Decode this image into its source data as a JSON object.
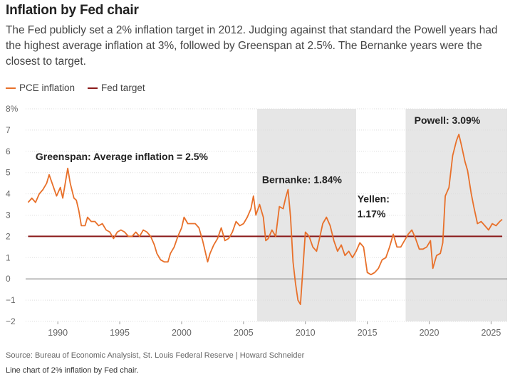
{
  "title": "Inflation by Fed chair",
  "subtitle": "The Fed publicly set a 2% inflation target in 2012. Judging against that standard the Powell years had the highest average inflation at 3%, followed by Greenspan at 2.5%. The Bernanke years were the closest to target.",
  "source": "Source: Bureau of Economic Analysist, St. Louis Federal Reserve | Howard Schneider",
  "caption": "Line chart of 2% inflation by Fed chair.",
  "colors": {
    "pce": "#e8702a",
    "target": "#8b1a1a",
    "shade": "#e6e6e6",
    "grid": "#dddddd",
    "zero": "#888888"
  },
  "chart_data": {
    "type": "line",
    "xlim": [
      1987.4,
      2026.3
    ],
    "ylim": [
      -2,
      8
    ],
    "x_ticks": [
      1990,
      1995,
      2000,
      2005,
      2010,
      2015,
      2020,
      2025
    ],
    "x_tick_labels": [
      "1990",
      "1995",
      "2000",
      "2005",
      "2010",
      "2015",
      "2020",
      "2025"
    ],
    "y_ticks": [
      -2,
      -1,
      0,
      1,
      2,
      3,
      4,
      5,
      6,
      7,
      8
    ],
    "y_tick_labels": [
      "−2",
      "−1",
      "0",
      "1",
      "2",
      "3",
      "4",
      "5",
      "6",
      "7",
      "8%"
    ],
    "grid": true,
    "legend": "top-left",
    "series": [
      {
        "name": "PCE inflation",
        "points": [
          [
            1987.6,
            3.6
          ],
          [
            1987.9,
            3.8
          ],
          [
            1988.2,
            3.6
          ],
          [
            1988.5,
            4.0
          ],
          [
            1988.8,
            4.2
          ],
          [
            1989.1,
            4.5
          ],
          [
            1989.3,
            4.9
          ],
          [
            1989.6,
            4.4
          ],
          [
            1989.9,
            3.9
          ],
          [
            1990.2,
            4.3
          ],
          [
            1990.4,
            3.8
          ],
          [
            1990.6,
            4.5
          ],
          [
            1990.8,
            5.2
          ],
          [
            1991.0,
            4.5
          ],
          [
            1991.3,
            3.8
          ],
          [
            1991.5,
            3.7
          ],
          [
            1991.7,
            3.2
          ],
          [
            1991.9,
            2.5
          ],
          [
            1992.2,
            2.5
          ],
          [
            1992.4,
            2.9
          ],
          [
            1992.7,
            2.7
          ],
          [
            1993.0,
            2.7
          ],
          [
            1993.3,
            2.5
          ],
          [
            1993.6,
            2.6
          ],
          [
            1993.9,
            2.3
          ],
          [
            1994.2,
            2.2
          ],
          [
            1994.5,
            1.9
          ],
          [
            1994.8,
            2.2
          ],
          [
            1995.1,
            2.3
          ],
          [
            1995.4,
            2.2
          ],
          [
            1995.7,
            2.0
          ],
          [
            1996.0,
            2.0
          ],
          [
            1996.3,
            2.2
          ],
          [
            1996.6,
            2.0
          ],
          [
            1996.9,
            2.3
          ],
          [
            1997.2,
            2.2
          ],
          [
            1997.5,
            2.0
          ],
          [
            1997.8,
            1.6
          ],
          [
            1998.0,
            1.2
          ],
          [
            1998.3,
            0.9
          ],
          [
            1998.6,
            0.8
          ],
          [
            1998.9,
            0.8
          ],
          [
            1999.1,
            1.2
          ],
          [
            1999.4,
            1.5
          ],
          [
            1999.7,
            2.0
          ],
          [
            2000.0,
            2.4
          ],
          [
            2000.2,
            2.9
          ],
          [
            2000.5,
            2.6
          ],
          [
            2000.8,
            2.6
          ],
          [
            2001.1,
            2.6
          ],
          [
            2001.4,
            2.4
          ],
          [
            2001.7,
            1.8
          ],
          [
            2001.9,
            1.3
          ],
          [
            2002.1,
            0.8
          ],
          [
            2002.3,
            1.2
          ],
          [
            2002.6,
            1.6
          ],
          [
            2002.9,
            1.9
          ],
          [
            2003.2,
            2.4
          ],
          [
            2003.5,
            1.8
          ],
          [
            2003.8,
            1.9
          ],
          [
            2004.1,
            2.2
          ],
          [
            2004.4,
            2.7
          ],
          [
            2004.7,
            2.5
          ],
          [
            2005.0,
            2.6
          ],
          [
            2005.3,
            2.9
          ],
          [
            2005.6,
            3.3
          ],
          [
            2005.8,
            3.9
          ],
          [
            2006.0,
            3.0
          ],
          [
            2006.3,
            3.5
          ],
          [
            2006.6,
            2.9
          ],
          [
            2006.8,
            1.8
          ],
          [
            2007.0,
            1.9
          ],
          [
            2007.3,
            2.3
          ],
          [
            2007.6,
            2.0
          ],
          [
            2007.9,
            3.4
          ],
          [
            2008.2,
            3.3
          ],
          [
            2008.4,
            3.8
          ],
          [
            2008.6,
            4.2
          ],
          [
            2008.8,
            2.9
          ],
          [
            2009.0,
            0.8
          ],
          [
            2009.2,
            -0.2
          ],
          [
            2009.4,
            -1.0
          ],
          [
            2009.6,
            -1.2
          ],
          [
            2009.8,
            0.5
          ],
          [
            2010.0,
            2.2
          ],
          [
            2010.3,
            2.0
          ],
          [
            2010.6,
            1.5
          ],
          [
            2010.9,
            1.3
          ],
          [
            2011.1,
            1.8
          ],
          [
            2011.4,
            2.6
          ],
          [
            2011.7,
            2.9
          ],
          [
            2012.0,
            2.5
          ],
          [
            2012.3,
            1.8
          ],
          [
            2012.6,
            1.3
          ],
          [
            2012.9,
            1.6
          ],
          [
            2013.2,
            1.1
          ],
          [
            2013.5,
            1.3
          ],
          [
            2013.8,
            1.0
          ],
          [
            2014.1,
            1.3
          ],
          [
            2014.4,
            1.7
          ],
          [
            2014.7,
            1.5
          ],
          [
            2015.0,
            0.3
          ],
          [
            2015.3,
            0.2
          ],
          [
            2015.6,
            0.3
          ],
          [
            2015.9,
            0.5
          ],
          [
            2016.2,
            0.9
          ],
          [
            2016.5,
            1.0
          ],
          [
            2016.8,
            1.5
          ],
          [
            2017.1,
            2.1
          ],
          [
            2017.4,
            1.5
          ],
          [
            2017.7,
            1.5
          ],
          [
            2018.0,
            1.8
          ],
          [
            2018.3,
            2.1
          ],
          [
            2018.6,
            2.3
          ],
          [
            2018.9,
            1.9
          ],
          [
            2019.2,
            1.4
          ],
          [
            2019.5,
            1.4
          ],
          [
            2019.8,
            1.5
          ],
          [
            2020.1,
            1.8
          ],
          [
            2020.3,
            0.5
          ],
          [
            2020.6,
            1.1
          ],
          [
            2020.9,
            1.2
          ],
          [
            2021.1,
            1.7
          ],
          [
            2021.3,
            3.9
          ],
          [
            2021.6,
            4.3
          ],
          [
            2021.9,
            5.8
          ],
          [
            2022.2,
            6.5
          ],
          [
            2022.4,
            6.8
          ],
          [
            2022.6,
            6.3
          ],
          [
            2022.9,
            5.5
          ],
          [
            2023.1,
            5.1
          ],
          [
            2023.4,
            4.0
          ],
          [
            2023.6,
            3.4
          ],
          [
            2023.9,
            2.6
          ],
          [
            2024.2,
            2.7
          ],
          [
            2024.5,
            2.5
          ],
          [
            2024.8,
            2.3
          ],
          [
            2025.1,
            2.6
          ],
          [
            2025.4,
            2.5
          ],
          [
            2025.7,
            2.7
          ],
          [
            2025.9,
            2.8
          ]
        ]
      },
      {
        "name": "Fed target",
        "points": [
          [
            1987.6,
            2
          ],
          [
            2025.9,
            2
          ]
        ]
      }
    ],
    "shaded_periods": [
      [
        2006.1,
        2014.1
      ],
      [
        2018.1,
        2026.3
      ]
    ],
    "annotations": [
      {
        "text": "Greenspan: Average inflation = 2.5%",
        "x": 1988.2,
        "y": 5.6
      },
      {
        "text": "Bernanke: 1.84%",
        "x": 2006.5,
        "y": 4.5
      },
      {
        "text": "Yellen:",
        "x": 2014.2,
        "y": 3.6
      },
      {
        "text": "1.17%",
        "x": 2014.2,
        "y": 2.9
      },
      {
        "text": "Powell: 3.09%",
        "x": 2018.8,
        "y": 7.3
      }
    ]
  }
}
